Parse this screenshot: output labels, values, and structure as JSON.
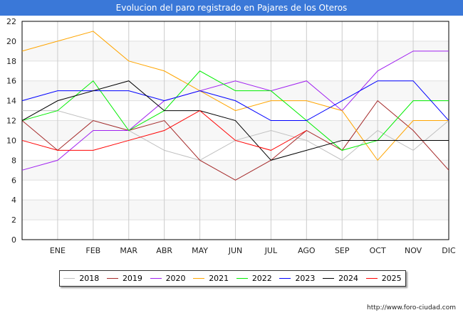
{
  "title": "Evolucion del paro registrado en Pajares de los Oteros",
  "url": "http://www.foro-ciudad.com",
  "chart_data": {
    "type": "line",
    "title": "Evolucion del paro registrado en Pajares de los Oteros",
    "categories": [
      "",
      "ENE",
      "FEB",
      "MAR",
      "ABR",
      "MAY",
      "JUN",
      "JUL",
      "AGO",
      "SEP",
      "OCT",
      "NOV",
      "DIC"
    ],
    "ylim": [
      0,
      22
    ],
    "yticks": [
      0,
      2,
      4,
      6,
      8,
      10,
      12,
      14,
      16,
      18,
      20,
      22
    ],
    "grid": true,
    "legend_position": "bottom",
    "series": [
      {
        "name": "2018",
        "color": "#c0c0c0",
        "values": [
          13,
          13,
          12,
          11,
          9,
          8,
          10,
          11,
          10,
          8,
          11,
          9,
          12
        ]
      },
      {
        "name": "2019",
        "color": "#a52a2a",
        "values": [
          12,
          9,
          12,
          11,
          12,
          8,
          6,
          8,
          11,
          9,
          14,
          11,
          7
        ]
      },
      {
        "name": "2020",
        "color": "#a020f0",
        "values": [
          7,
          8,
          11,
          11,
          14,
          15,
          16,
          15,
          16,
          13,
          17,
          19,
          19
        ]
      },
      {
        "name": "2021",
        "color": "#ffa500",
        "values": [
          19,
          20,
          21,
          18,
          17,
          15,
          13,
          14,
          14,
          13,
          8,
          12,
          12
        ]
      },
      {
        "name": "2022",
        "color": "#00ee00",
        "values": [
          12,
          13,
          16,
          11,
          13,
          17,
          15,
          15,
          12,
          9,
          10,
          14,
          14
        ]
      },
      {
        "name": "2023",
        "color": "#0000ff",
        "values": [
          14,
          15,
          15,
          15,
          14,
          15,
          14,
          12,
          12,
          14,
          16,
          16,
          12
        ]
      },
      {
        "name": "2024",
        "color": "#000000",
        "values": [
          12,
          14,
          15,
          16,
          13,
          13,
          12,
          8,
          9,
          10,
          10,
          10,
          10
        ]
      },
      {
        "name": "2025",
        "color": "#ff0000",
        "values": [
          10,
          9,
          9,
          10,
          11,
          13,
          10,
          9,
          11,
          null,
          null,
          null,
          null
        ]
      }
    ]
  }
}
